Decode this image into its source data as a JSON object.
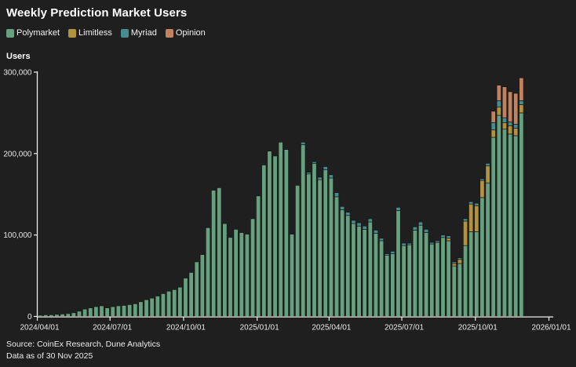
{
  "title": "Weekly Prediction Market Users",
  "y_axis_title": "Users",
  "legend": {
    "items": [
      {
        "label": "Polymarket",
        "color": "#67a07f"
      },
      {
        "label": "Limitless",
        "color": "#b2923f"
      },
      {
        "label": "Myriad",
        "color": "#468b8d"
      },
      {
        "label": "Opinion",
        "color": "#c08261"
      }
    ]
  },
  "footer": {
    "source": "Source: CoinEx Research, Dune Analytics",
    "as_of": "Data as of 30 Nov 2025"
  },
  "colors": {
    "background": "#1e1f1e",
    "axis": "#ededed",
    "bar_outline": "#161716"
  },
  "chart_data": {
    "type": "bar",
    "stacked": true,
    "title": "Weekly Prediction Market Users",
    "xlabel": "",
    "ylabel": "Users",
    "ylim": [
      0,
      300000
    ],
    "grid": false,
    "legend_position": "top-left",
    "x_domain": [
      "2024-04-01",
      "2026-01-01"
    ],
    "y_ticks": [
      {
        "value": 0,
        "label": "0"
      },
      {
        "value": 100000,
        "label": "100,000"
      },
      {
        "value": 200000,
        "label": "200,000"
      },
      {
        "value": 300000,
        "label": "300,000"
      }
    ],
    "x_ticks": [
      {
        "date": "2024-04-01",
        "label": "2024/04/01"
      },
      {
        "date": "2024-07-01",
        "label": "2024/07/01"
      },
      {
        "date": "2024-10-01",
        "label": "2024/10/01"
      },
      {
        "date": "2025-01-01",
        "label": "2025/01/01"
      },
      {
        "date": "2025-04-01",
        "label": "2025/04/01"
      },
      {
        "date": "2025-07-01",
        "label": "2025/07/01"
      },
      {
        "date": "2025-10-01",
        "label": "2025/10/01"
      },
      {
        "date": "2026-01-01",
        "label": "2026/01/01"
      }
    ],
    "categories": [
      "2024-04-01",
      "2024-04-08",
      "2024-04-15",
      "2024-04-22",
      "2024-04-29",
      "2024-05-06",
      "2024-05-13",
      "2024-05-20",
      "2024-05-27",
      "2024-06-03",
      "2024-06-10",
      "2024-06-17",
      "2024-06-24",
      "2024-07-01",
      "2024-07-08",
      "2024-07-15",
      "2024-07-22",
      "2024-07-29",
      "2024-08-05",
      "2024-08-12",
      "2024-08-19",
      "2024-08-26",
      "2024-09-02",
      "2024-09-09",
      "2024-09-16",
      "2024-09-23",
      "2024-09-30",
      "2024-10-07",
      "2024-10-14",
      "2024-10-21",
      "2024-10-28",
      "2024-11-04",
      "2024-11-11",
      "2024-11-18",
      "2024-11-25",
      "2024-12-02",
      "2024-12-09",
      "2024-12-16",
      "2024-12-23",
      "2024-12-30",
      "2025-01-06",
      "2025-01-13",
      "2025-01-20",
      "2025-01-27",
      "2025-02-03",
      "2025-02-10",
      "2025-02-17",
      "2025-02-24",
      "2025-03-03",
      "2025-03-10",
      "2025-03-17",
      "2025-03-24",
      "2025-03-31",
      "2025-04-07",
      "2025-04-14",
      "2025-04-21",
      "2025-04-28",
      "2025-05-05",
      "2025-05-12",
      "2025-05-19",
      "2025-05-26",
      "2025-06-02",
      "2025-06-09",
      "2025-06-16",
      "2025-06-23",
      "2025-06-30",
      "2025-07-07",
      "2025-07-14",
      "2025-07-21",
      "2025-07-28",
      "2025-08-04",
      "2025-08-11",
      "2025-08-18",
      "2025-08-25",
      "2025-09-01",
      "2025-09-08",
      "2025-09-15",
      "2025-09-22",
      "2025-09-29",
      "2025-10-06",
      "2025-10-13",
      "2025-10-20",
      "2025-10-27",
      "2025-11-03",
      "2025-11-10",
      "2025-11-17",
      "2025-11-24"
    ],
    "series": [
      {
        "name": "Polymarket",
        "color": "#67a07f",
        "values": [
          1500,
          2000,
          2000,
          2500,
          3000,
          3500,
          4500,
          6500,
          9000,
          10500,
          12000,
          13000,
          10500,
          12000,
          13000,
          13500,
          14500,
          15500,
          18000,
          20500,
          22500,
          25000,
          28000,
          31000,
          33000,
          36000,
          47000,
          54000,
          67000,
          76000,
          109000,
          155000,
          158000,
          114000,
          97000,
          107000,
          103000,
          101000,
          120000,
          148000,
          186000,
          203000,
          197000,
          214000,
          205000,
          101000,
          161000,
          211000,
          175000,
          188000,
          168000,
          180000,
          170000,
          147000,
          131000,
          124000,
          114000,
          111000,
          107000,
          116000,
          102000,
          93000,
          75000,
          77000,
          130000,
          87000,
          88000,
          106000,
          112000,
          103000,
          89000,
          91000,
          97000,
          93000,
          62000,
          65000,
          87000,
          104000,
          104000,
          146000,
          164000,
          220000,
          247000,
          230000,
          224000,
          222000,
          250000
        ]
      },
      {
        "name": "Limitless",
        "color": "#b2923f",
        "values": [
          0,
          0,
          0,
          0,
          0,
          0,
          0,
          0,
          0,
          0,
          0,
          0,
          0,
          0,
          0,
          0,
          0,
          0,
          0,
          0,
          0,
          0,
          0,
          0,
          0,
          0,
          0,
          0,
          0,
          0,
          0,
          0,
          0,
          0,
          0,
          0,
          0,
          0,
          0,
          0,
          0,
          0,
          0,
          0,
          0,
          0,
          0,
          0,
          0,
          0,
          0,
          0,
          0,
          0,
          0,
          0,
          0,
          0,
          0,
          0,
          0,
          0,
          0,
          0,
          0,
          0,
          0,
          0,
          0,
          0,
          0,
          0,
          0,
          3000,
          3000,
          5000,
          30000,
          34000,
          32000,
          21000,
          21000,
          9000,
          10000,
          8000,
          10000,
          9000,
          10000
        ]
      },
      {
        "name": "Myriad",
        "color": "#468b8d",
        "values": [
          0,
          0,
          0,
          0,
          0,
          0,
          0,
          0,
          0,
          0,
          0,
          0,
          0,
          0,
          0,
          0,
          0,
          0,
          0,
          0,
          0,
          0,
          0,
          0,
          0,
          0,
          0,
          0,
          0,
          0,
          0,
          0,
          0,
          0,
          0,
          0,
          0,
          0,
          0,
          0,
          0,
          0,
          0,
          0,
          0,
          0,
          0,
          3000,
          2000,
          2000,
          3000,
          4000,
          4000,
          5000,
          4000,
          4000,
          4000,
          4000,
          4000,
          4000,
          4000,
          3000,
          2000,
          3000,
          4000,
          3000,
          2000,
          4000,
          4000,
          4000,
          2000,
          2000,
          3000,
          3000,
          2000,
          2000,
          3000,
          3000,
          3000,
          2000,
          3000,
          9000,
          8000,
          6000,
          5000,
          5000,
          5000
        ]
      },
      {
        "name": "Opinion",
        "color": "#c08261",
        "values": [
          0,
          0,
          0,
          0,
          0,
          0,
          0,
          0,
          0,
          0,
          0,
          0,
          0,
          0,
          0,
          0,
          0,
          0,
          0,
          0,
          0,
          0,
          0,
          0,
          0,
          0,
          0,
          0,
          0,
          0,
          0,
          0,
          0,
          0,
          0,
          0,
          0,
          0,
          0,
          0,
          0,
          0,
          0,
          0,
          0,
          0,
          0,
          0,
          0,
          0,
          0,
          0,
          0,
          0,
          0,
          0,
          0,
          0,
          0,
          0,
          0,
          0,
          0,
          0,
          0,
          0,
          0,
          0,
          0,
          0,
          0,
          0,
          0,
          0,
          0,
          0,
          0,
          0,
          0,
          0,
          0,
          14000,
          19000,
          38000,
          37000,
          38000,
          28000
        ]
      }
    ]
  }
}
